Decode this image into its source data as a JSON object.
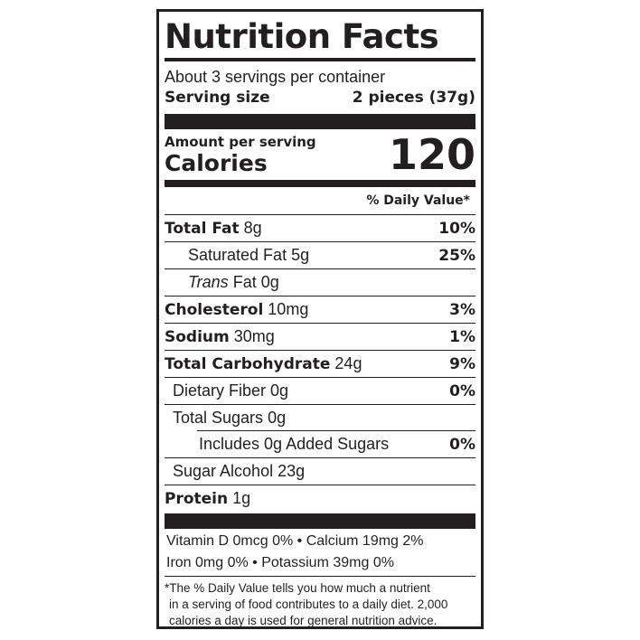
{
  "title": "Nutrition Facts",
  "servings_per_container": "About 3 servings per container",
  "serving_size": {
    "label": "Serving size",
    "value": "2 pieces (37g)"
  },
  "amount_per_serving": "Amount per serving",
  "calories": {
    "label": "Calories",
    "value": "120"
  },
  "daily_value_header": "% Daily Value*",
  "nutrients": [
    {
      "name": "Total Fat",
      "amount": "8g",
      "dv": "10%"
    },
    {
      "name": "Saturated Fat",
      "amount": "5g",
      "dv": "25%"
    },
    {
      "name": "Trans",
      "name_suffix": "Fat",
      "amount": "0g",
      "dv": ""
    },
    {
      "name": "Cholesterol",
      "amount": "10mg",
      "dv": "3%"
    },
    {
      "name": "Sodium",
      "amount": "30mg",
      "dv": "1%"
    },
    {
      "name": "Total Carbohydrate",
      "amount": "24g",
      "dv": "9%"
    },
    {
      "name": "Dietary Fiber",
      "amount": "0g",
      "dv": "0%"
    },
    {
      "name": "Total Sugars",
      "amount": "0g",
      "dv": ""
    },
    {
      "name": "Includes 0g Added Sugars",
      "amount": "",
      "dv": "0%"
    },
    {
      "name": "Sugar Alcohol",
      "amount": "23g",
      "dv": ""
    },
    {
      "name": "Protein",
      "amount": "1g",
      "dv": ""
    }
  ],
  "vitamins": [
    "Vitamin D 0mcg 0% • Calcium 19mg 2%",
    "Iron 0mg 0% • Potassium 39mg 0%"
  ],
  "footnote": [
    "*The % Daily Value tells you how much a nutrient",
    "in a serving of food contributes to a daily diet. 2,000",
    "calories a day is used for general nutrition advice."
  ]
}
